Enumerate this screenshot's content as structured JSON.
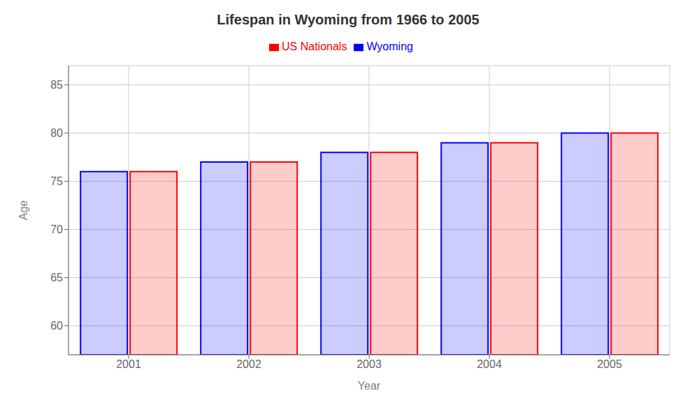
{
  "chart_data": {
    "type": "bar",
    "title": "Lifespan in Wyoming from 1966 to 2005",
    "x_label": "Year",
    "y_label": "Age",
    "categories": [
      "2001",
      "2002",
      "2003",
      "2004",
      "2005"
    ],
    "series": [
      {
        "name": "Wyoming",
        "color": "#0000ff",
        "values": [
          76,
          77,
          78,
          79,
          80
        ]
      },
      {
        "name": "US Nationals",
        "color": "#ff0000",
        "values": [
          76,
          77,
          78,
          79,
          80
        ]
      }
    ],
    "ylim": [
      57,
      87
    ],
    "yticks": [
      60,
      65,
      70,
      75,
      80,
      85
    ],
    "grid": true,
    "legend": "top"
  }
}
